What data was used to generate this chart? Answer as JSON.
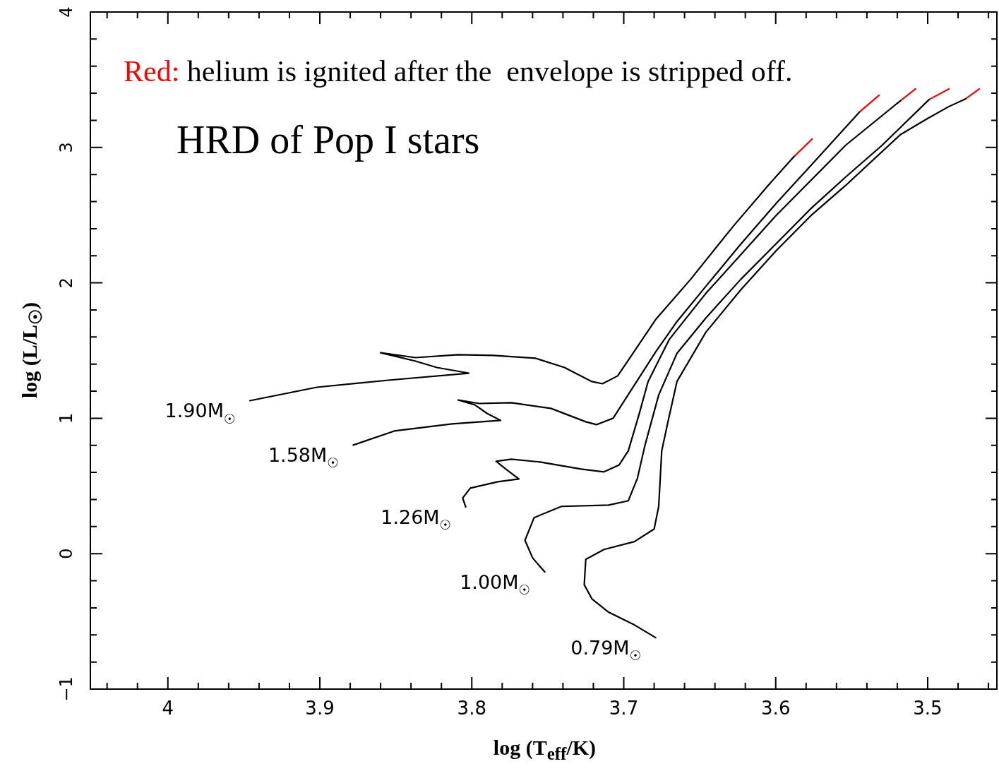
{
  "chart_data": {
    "type": "line",
    "title": "HRD of Pop I stars",
    "xlabel": "log (T$_{eff}$/K)",
    "ylabel": "log (L/L$_{☉}$)",
    "annotations": [
      "Red: helium is ignited after the  envelope is stripped off."
    ],
    "xlim": [
      4.051,
      3.454
    ],
    "ylim": [
      -1,
      4
    ],
    "xticks": [
      {
        "value": 4.04,
        "label": null
      },
      {
        "value": 4.02,
        "label": null
      },
      4,
      {
        "value": 3.98,
        "label": null
      },
      {
        "value": 3.96,
        "label": null
      },
      {
        "value": 3.94,
        "label": null
      },
      {
        "value": 3.92,
        "label": null
      },
      3.9,
      {
        "value": 3.88,
        "label": null
      },
      {
        "value": 3.86,
        "label": null
      },
      {
        "value": 3.84,
        "label": null
      },
      {
        "value": 3.82,
        "label": null
      },
      3.8,
      {
        "value": 3.78,
        "label": null
      },
      {
        "value": 3.76,
        "label": null
      },
      {
        "value": 3.74,
        "label": null
      },
      {
        "value": 3.72,
        "label": null
      },
      3.7,
      {
        "value": 3.68,
        "label": null
      },
      {
        "value": 3.66,
        "label": null
      },
      {
        "value": 3.64,
        "label": null
      },
      {
        "value": 3.62,
        "label": null
      },
      3.6,
      {
        "value": 3.58,
        "label": null
      },
      {
        "value": 3.56,
        "label": null
      },
      {
        "value": 3.54,
        "label": null
      },
      {
        "value": 3.52,
        "label": null
      },
      3.5,
      {
        "value": 3.48,
        "label": null
      },
      {
        "value": 3.46,
        "label": null
      }
    ],
    "yticks": [
      {
        "value": -1,
        "label": "−1"
      },
      {
        "value": -0.8,
        "label": null
      },
      {
        "value": -0.6,
        "label": null
      },
      {
        "value": -0.4,
        "label": null
      },
      {
        "value": -0.2,
        "label": null
      },
      0,
      {
        "value": 0.2,
        "label": null
      },
      {
        "value": 0.4,
        "label": null
      },
      {
        "value": 0.6,
        "label": null
      },
      {
        "value": 0.8,
        "label": null
      },
      1,
      {
        "value": 1.2,
        "label": null
      },
      {
        "value": 1.4,
        "label": null
      },
      {
        "value": 1.6,
        "label": null
      },
      {
        "value": 1.8,
        "label": null
      },
      2,
      {
        "value": 2.2,
        "label": null
      },
      {
        "value": 2.4,
        "label": null
      },
      {
        "value": 2.6,
        "label": null
      },
      {
        "value": 2.8,
        "label": null
      },
      3,
      {
        "value": 3.2,
        "label": null
      },
      {
        "value": 3.4,
        "label": null
      },
      {
        "value": 3.6,
        "label": null
      },
      {
        "value": 3.8,
        "label": null
      },
      4
    ],
    "grid": false,
    "legend": false,
    "marker": "none",
    "line_style": "solid",
    "series": [
      {
        "name": "1.90M$_{☉}$",
        "color": "#000000",
        "x": [
          3.946,
          3.902,
          3.855,
          3.802,
          3.823,
          3.837,
          3.86,
          3.837,
          3.809,
          3.786,
          3.758,
          3.739,
          3.721,
          3.714,
          3.704,
          3.693,
          3.679,
          3.656,
          3.628,
          3.605,
          3.588
        ],
        "values": [
          1.13,
          1.229,
          1.281,
          1.333,
          1.375,
          1.422,
          1.484,
          1.448,
          1.469,
          1.464,
          1.443,
          1.375,
          1.271,
          1.255,
          1.313,
          1.495,
          1.729,
          2.026,
          2.417,
          2.719,
          2.932
        ]
      },
      {
        "color": "#ff0000",
        "x": [
          3.588,
          3.576
        ],
        "values": [
          2.932,
          3.063
        ]
      },
      {
        "name": "1.58M$_{☉}$",
        "color": "#000000",
        "x": [
          3.878,
          3.851,
          3.813,
          3.781,
          3.79,
          3.798,
          3.809,
          3.795,
          3.774,
          3.748,
          3.725,
          3.718,
          3.707,
          3.693,
          3.679,
          3.665,
          3.646,
          3.623,
          3.6,
          3.577,
          3.545
        ],
        "values": [
          0.802,
          0.906,
          0.958,
          0.984,
          1.036,
          1.099,
          1.135,
          1.109,
          1.115,
          1.073,
          0.974,
          0.953,
          1.0,
          1.245,
          1.49,
          1.714,
          1.974,
          2.286,
          2.583,
          2.865,
          3.26
        ]
      },
      {
        "color": "#ff0000",
        "x": [
          3.545,
          3.532
        ],
        "values": [
          3.26,
          3.385
        ]
      },
      {
        "name": "1.26M$_{☉}$",
        "color": "#000000",
        "x": [
          3.804,
          3.806,
          3.801,
          3.783,
          3.769,
          3.777,
          3.784,
          3.774,
          3.755,
          3.728,
          3.713,
          3.703,
          3.697,
          3.69,
          3.684,
          3.67,
          3.646,
          3.623,
          3.6,
          3.577,
          3.554,
          3.518
        ],
        "values": [
          0.344,
          0.411,
          0.484,
          0.531,
          0.552,
          0.62,
          0.682,
          0.698,
          0.677,
          0.625,
          0.604,
          0.656,
          0.76,
          1.026,
          1.271,
          1.583,
          1.922,
          2.208,
          2.495,
          2.755,
          3.016,
          3.344
        ]
      },
      {
        "color": "#ff0000",
        "x": [
          3.518,
          3.508
        ],
        "values": [
          3.344,
          3.432
        ]
      },
      {
        "name": "1.00M$_{☉}$",
        "color": "#000000",
        "x": [
          3.752,
          3.76,
          3.765,
          3.759,
          3.741,
          3.71,
          3.697,
          3.691,
          3.686,
          3.677,
          3.665,
          3.646,
          3.623,
          3.6,
          3.577,
          3.554,
          3.53,
          3.499
        ],
        "values": [
          -0.135,
          -0.031,
          0.099,
          0.266,
          0.349,
          0.359,
          0.391,
          0.557,
          0.802,
          1.172,
          1.479,
          1.74,
          2.026,
          2.286,
          2.547,
          2.781,
          3.016,
          3.354
        ]
      },
      {
        "color": "#ff0000",
        "x": [
          3.499,
          3.486
        ],
        "values": [
          3.354,
          3.432
        ]
      },
      {
        "name": "0.79M$_{☉}$",
        "color": "#000000",
        "x": [
          3.679,
          3.693,
          3.71,
          3.721,
          3.726,
          3.725,
          3.713,
          3.693,
          3.68,
          3.677,
          3.675,
          3.671,
          3.665,
          3.646,
          3.623,
          3.6,
          3.577,
          3.554,
          3.518,
          3.5,
          3.486,
          3.475
        ],
        "values": [
          -0.62,
          -0.526,
          -0.432,
          -0.333,
          -0.229,
          -0.042,
          0.031,
          0.089,
          0.182,
          0.349,
          0.76,
          0.969,
          1.271,
          1.635,
          1.948,
          2.234,
          2.495,
          2.719,
          3.094,
          3.214,
          3.302,
          3.359
        ]
      },
      {
        "color": "#ff0000",
        "x": [
          3.475,
          3.466
        ],
        "values": [
          3.359,
          3.432
        ]
      }
    ]
  }
}
